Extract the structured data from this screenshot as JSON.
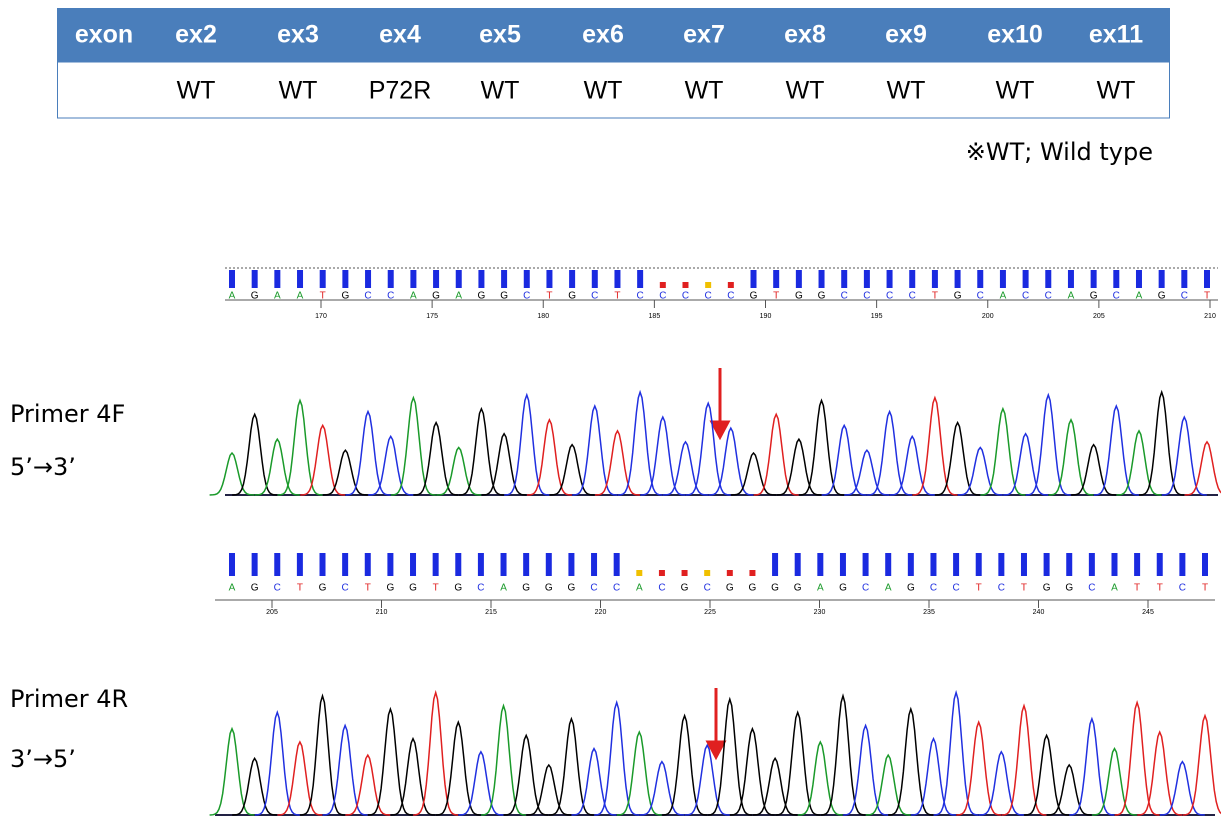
{
  "table": {
    "header": [
      "exon",
      "ex2",
      "ex3",
      "ex4",
      "ex5",
      "ex6",
      "ex7",
      "ex8",
      "ex9",
      "ex10",
      "ex11"
    ],
    "rows": [
      [
        "WT",
        "WT",
        "P72R",
        "WT",
        "WT",
        "WT",
        "WT",
        "WT",
        "WT",
        "WT"
      ]
    ]
  },
  "footnote": "※WT; Wild type",
  "panels": [
    {
      "label": "Primer 4F",
      "direction": "5’→3’",
      "bases": [
        "A",
        "G",
        "A",
        "A",
        "T",
        "G",
        "C",
        "C",
        "A",
        "G",
        "A",
        "G",
        "G",
        "C",
        "T",
        "G",
        "C",
        "T",
        "C",
        "C",
        "C",
        "C",
        "C",
        "G",
        "T",
        "G",
        "G",
        "C",
        "C",
        "C",
        "C",
        "T",
        "G",
        "C",
        "A",
        "C",
        "C",
        "A",
        "G",
        "C",
        "A",
        "G",
        "C",
        "T"
      ],
      "positions": [
        170,
        175,
        180,
        185,
        190,
        195,
        200,
        205,
        210
      ]
    },
    {
      "label": "Primer 4R",
      "direction": "3’→5’",
      "bases": [
        "A",
        "G",
        "C",
        "T",
        "G",
        "C",
        "T",
        "G",
        "G",
        "T",
        "G",
        "C",
        "A",
        "G",
        "G",
        "G",
        "C",
        "C",
        "A",
        "C",
        "G",
        "C",
        "G",
        "G",
        "G",
        "G",
        "A",
        "G",
        "C",
        "A",
        "G",
        "C",
        "C",
        "T",
        "C",
        "T",
        "G",
        "G",
        "C",
        "A",
        "T",
        "T",
        "C",
        "T"
      ],
      "positions": [
        205,
        210,
        215,
        220,
        225,
        230,
        235,
        240,
        245
      ]
    }
  ]
}
